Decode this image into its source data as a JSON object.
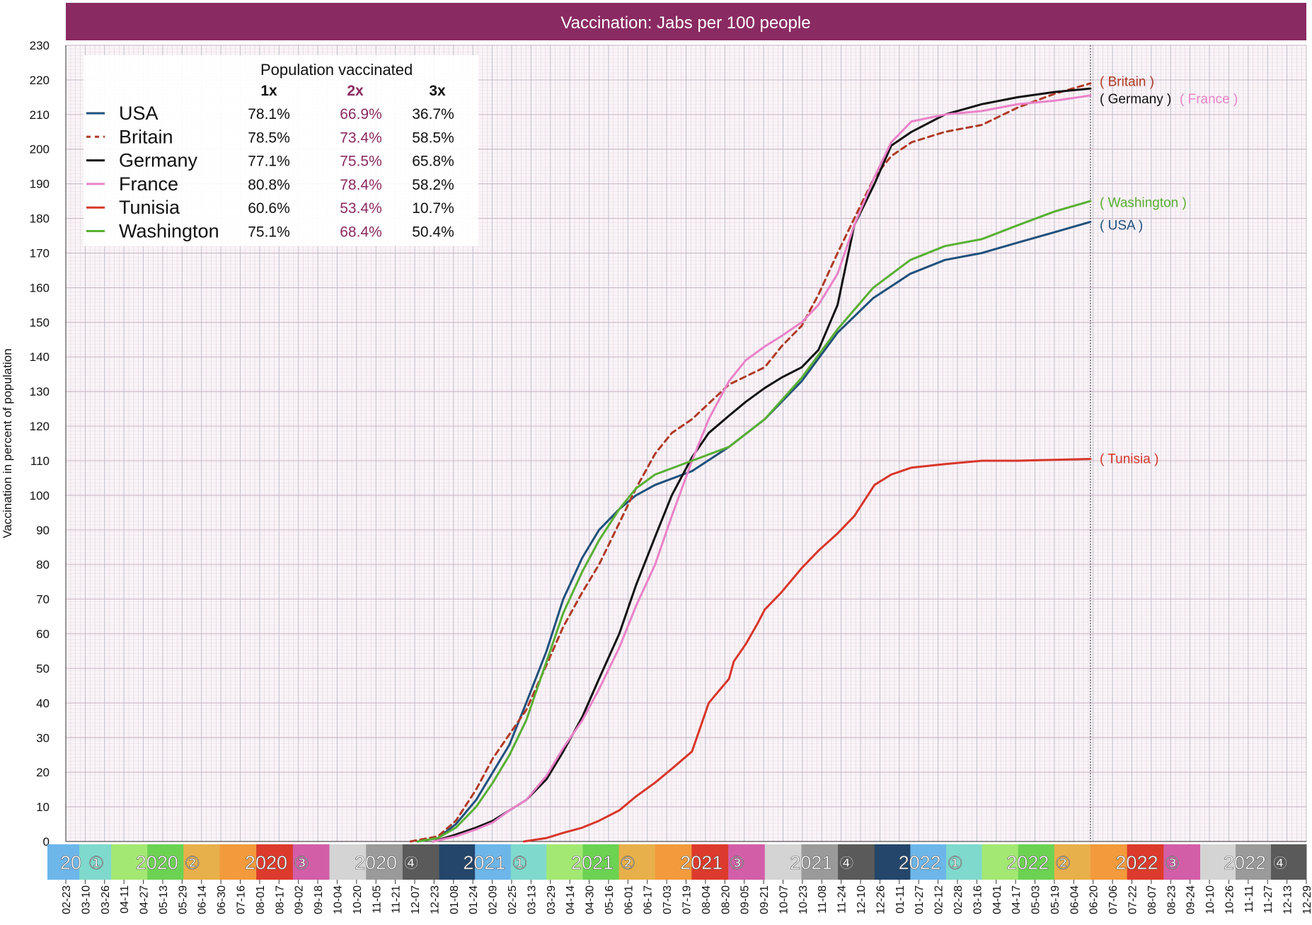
{
  "chart_data": {
    "type": "line",
    "title": "Vaccination: Jabs per 100 people",
    "ylabel": "Vaccination in percent of population",
    "xlabel": "",
    "ylim": [
      0,
      230
    ],
    "yticks": [
      0,
      10,
      20,
      30,
      40,
      50,
      60,
      70,
      80,
      90,
      100,
      110,
      120,
      130,
      140,
      150,
      160,
      170,
      180,
      190,
      200,
      210,
      220,
      230
    ],
    "x_range": [
      "2020-02-23",
      "2022-12-29"
    ],
    "x_tick_labels": [
      "02-23",
      "03-10",
      "03-26",
      "04-11",
      "04-27",
      "05-13",
      "05-29",
      "06-14",
      "06-30",
      "07-16",
      "08-01",
      "08-17",
      "09-02",
      "09-18",
      "10-04",
      "10-20",
      "11-05",
      "11-21",
      "12-07",
      "12-23",
      "01-08",
      "01-24",
      "02-09",
      "02-25",
      "03-13",
      "03-29",
      "04-14",
      "04-30",
      "05-16",
      "06-01",
      "06-17",
      "07-03",
      "07-19",
      "08-04",
      "08-20",
      "09-05",
      "09-21",
      "10-07",
      "10-23",
      "11-08",
      "11-24",
      "12-10",
      "12-26",
      "01-11",
      "01-27",
      "02-12",
      "02-28",
      "03-16",
      "04-01",
      "04-17",
      "05-03",
      "05-19",
      "06-04",
      "06-20",
      "07-06",
      "07-22",
      "08-07",
      "08-23",
      "09-24",
      "10-10",
      "10-26",
      "11-11",
      "11-27",
      "12-13",
      "12-29"
    ],
    "quarters": [
      {
        "label": "20",
        "num": "①",
        "start": "2020-02-23",
        "end": "2020-04-01",
        "colors": [
          "#6cb6ea",
          "#7fd9cc"
        ]
      },
      {
        "label": "2020",
        "num": "②",
        "start": "2020-04-01",
        "end": "2020-07-01",
        "colors": [
          "#a4e874",
          "#6cd252",
          "#e8b04a"
        ]
      },
      {
        "label": "2020",
        "num": "③",
        "start": "2020-07-01",
        "end": "2020-10-01",
        "colors": [
          "#f39a3c",
          "#dc3a2c",
          "#d35ea8"
        ]
      },
      {
        "label": "2020",
        "num": "④",
        "start": "2020-10-01",
        "end": "2021-01-01",
        "colors": [
          "#d4d4d4",
          "#9a9a9a",
          "#5a5a5a"
        ]
      },
      {
        "label": "2021",
        "num": "①",
        "start": "2021-01-01",
        "end": "2021-04-01",
        "colors": [
          "#24466b",
          "#6cb6ea",
          "#7fd9cc"
        ]
      },
      {
        "label": "2021",
        "num": "②",
        "start": "2021-04-01",
        "end": "2021-07-01",
        "colors": [
          "#a4e874",
          "#6cd252",
          "#e8b04a"
        ]
      },
      {
        "label": "2021",
        "num": "③",
        "start": "2021-07-01",
        "end": "2021-10-01",
        "colors": [
          "#f39a3c",
          "#dc3a2c",
          "#d35ea8"
        ]
      },
      {
        "label": "2021",
        "num": "④",
        "start": "2021-10-01",
        "end": "2022-01-01",
        "colors": [
          "#d4d4d4",
          "#9a9a9a",
          "#5a5a5a"
        ]
      },
      {
        "label": "2022",
        "num": "①",
        "start": "2022-01-01",
        "end": "2022-04-01",
        "colors": [
          "#24466b",
          "#6cb6ea",
          "#7fd9cc"
        ]
      },
      {
        "label": "2022",
        "num": "②",
        "start": "2022-04-01",
        "end": "2022-07-01",
        "colors": [
          "#a4e874",
          "#6cd252",
          "#e8b04a"
        ]
      },
      {
        "label": "2022",
        "num": "③",
        "start": "2022-07-01",
        "end": "2022-10-01",
        "colors": [
          "#f39a3c",
          "#dc3a2c",
          "#d35ea8"
        ]
      },
      {
        "label": "2022",
        "num": "④",
        "start": "2022-10-01",
        "end": "2022-12-29",
        "colors": [
          "#d4d4d4",
          "#9a9a9a",
          "#5a5a5a"
        ]
      }
    ],
    "current_date": "2022-07-01",
    "table": {
      "title": "Population vaccinated",
      "headers": [
        "1x",
        "2x",
        "3x"
      ]
    },
    "series": [
      {
        "name": "USA",
        "color": "#20507c",
        "dash": false,
        "end_label": "( USA )",
        "stats": [
          "78.1%",
          "66.9%",
          "36.7%"
        ],
        "points": [
          [
            "2020-12-14",
            0
          ],
          [
            "2020-12-31",
            1
          ],
          [
            "2021-01-15",
            5
          ],
          [
            "2021-02-01",
            12
          ],
          [
            "2021-02-15",
            20
          ],
          [
            "2021-03-01",
            28
          ],
          [
            "2021-03-15",
            40
          ],
          [
            "2021-04-01",
            55
          ],
          [
            "2021-04-15",
            70
          ],
          [
            "2021-05-01",
            82
          ],
          [
            "2021-05-15",
            90
          ],
          [
            "2021-06-01",
            96
          ],
          [
            "2021-06-15",
            100
          ],
          [
            "2021-07-01",
            103
          ],
          [
            "2021-08-01",
            107
          ],
          [
            "2021-09-01",
            114
          ],
          [
            "2021-10-01",
            122
          ],
          [
            "2021-11-01",
            133
          ],
          [
            "2021-12-01",
            147
          ],
          [
            "2021-12-31",
            157
          ],
          [
            "2022-01-31",
            164
          ],
          [
            "2022-03-01",
            168
          ],
          [
            "2022-04-01",
            170
          ],
          [
            "2022-05-01",
            173
          ],
          [
            "2022-06-01",
            176
          ],
          [
            "2022-07-01",
            179
          ]
        ]
      },
      {
        "name": "Britain",
        "color": "#b03a26",
        "dash": true,
        "end_label": "( Britain )",
        "stats": [
          "78.5%",
          "73.4%",
          "58.5%"
        ],
        "points": [
          [
            "2020-12-08",
            0
          ],
          [
            "2020-12-31",
            1.5
          ],
          [
            "2021-01-15",
            6
          ],
          [
            "2021-02-01",
            15
          ],
          [
            "2021-02-15",
            24
          ],
          [
            "2021-03-01",
            31
          ],
          [
            "2021-03-15",
            38
          ],
          [
            "2021-04-01",
            51
          ],
          [
            "2021-04-15",
            62
          ],
          [
            "2021-05-01",
            72
          ],
          [
            "2021-05-15",
            80
          ],
          [
            "2021-06-01",
            92
          ],
          [
            "2021-06-15",
            102
          ],
          [
            "2021-07-01",
            112
          ],
          [
            "2021-07-15",
            118
          ],
          [
            "2021-08-01",
            122
          ],
          [
            "2021-09-01",
            132
          ],
          [
            "2021-10-01",
            137
          ],
          [
            "2021-10-15",
            143
          ],
          [
            "2021-11-01",
            149
          ],
          [
            "2021-11-15",
            158
          ],
          [
            "2021-12-01",
            170
          ],
          [
            "2021-12-15",
            180
          ],
          [
            "2022-01-01",
            192
          ],
          [
            "2022-01-15",
            198
          ],
          [
            "2022-02-01",
            202
          ],
          [
            "2022-03-01",
            205
          ],
          [
            "2022-04-01",
            207
          ],
          [
            "2022-05-01",
            212
          ],
          [
            "2022-06-01",
            216
          ],
          [
            "2022-07-01",
            219
          ]
        ]
      },
      {
        "name": "Germany",
        "color": "#111111",
        "dash": false,
        "end_label": "( Germany )",
        "stats": [
          "77.1%",
          "75.5%",
          "65.8%"
        ],
        "points": [
          [
            "2020-12-27",
            0
          ],
          [
            "2021-01-15",
            2
          ],
          [
            "2021-02-01",
            4
          ],
          [
            "2021-02-15",
            6
          ],
          [
            "2021-03-01",
            9
          ],
          [
            "2021-03-15",
            12
          ],
          [
            "2021-04-01",
            18
          ],
          [
            "2021-04-15",
            26
          ],
          [
            "2021-05-01",
            36
          ],
          [
            "2021-05-15",
            47
          ],
          [
            "2021-06-01",
            60
          ],
          [
            "2021-06-15",
            74
          ],
          [
            "2021-07-01",
            88
          ],
          [
            "2021-07-15",
            100
          ],
          [
            "2021-08-01",
            111
          ],
          [
            "2021-08-15",
            118
          ],
          [
            "2021-09-01",
            123
          ],
          [
            "2021-09-15",
            127
          ],
          [
            "2021-10-01",
            131
          ],
          [
            "2021-10-15",
            134
          ],
          [
            "2021-11-01",
            137
          ],
          [
            "2021-11-15",
            142
          ],
          [
            "2021-12-01",
            155
          ],
          [
            "2021-12-15",
            178
          ],
          [
            "2022-01-01",
            190
          ],
          [
            "2022-01-15",
            201
          ],
          [
            "2022-02-01",
            205
          ],
          [
            "2022-03-01",
            210
          ],
          [
            "2022-04-01",
            213
          ],
          [
            "2022-05-01",
            215
          ],
          [
            "2022-06-01",
            216.5
          ],
          [
            "2022-07-01",
            217.5
          ]
        ]
      },
      {
        "name": "France",
        "color": "#ea82c8",
        "dash": false,
        "end_label": "( France )",
        "stats": [
          "80.8%",
          "78.4%",
          "58.2%"
        ],
        "points": [
          [
            "2020-12-27",
            0
          ],
          [
            "2021-01-15",
            1.5
          ],
          [
            "2021-02-01",
            3.5
          ],
          [
            "2021-02-15",
            5.5
          ],
          [
            "2021-03-01",
            9
          ],
          [
            "2021-03-15",
            12
          ],
          [
            "2021-04-01",
            19
          ],
          [
            "2021-04-15",
            27
          ],
          [
            "2021-05-01",
            35
          ],
          [
            "2021-05-15",
            44
          ],
          [
            "2021-06-01",
            56
          ],
          [
            "2021-06-15",
            68
          ],
          [
            "2021-07-01",
            80
          ],
          [
            "2021-07-15",
            94
          ],
          [
            "2021-08-01",
            110
          ],
          [
            "2021-08-15",
            122
          ],
          [
            "2021-09-01",
            133
          ],
          [
            "2021-09-15",
            139
          ],
          [
            "2021-10-01",
            143
          ],
          [
            "2021-10-15",
            146
          ],
          [
            "2021-11-01",
            150
          ],
          [
            "2021-11-15",
            155
          ],
          [
            "2021-12-01",
            164
          ],
          [
            "2021-12-15",
            178
          ],
          [
            "2022-01-01",
            192
          ],
          [
            "2022-01-15",
            202
          ],
          [
            "2022-02-01",
            208
          ],
          [
            "2022-03-01",
            210
          ],
          [
            "2022-04-01",
            211
          ],
          [
            "2022-05-01",
            213
          ],
          [
            "2022-06-01",
            214
          ],
          [
            "2022-07-01",
            215.5
          ]
        ]
      },
      {
        "name": "Tunisia",
        "color": "#d8362a",
        "dash": false,
        "end_label": "( Tunisia )",
        "stats": [
          "60.6%",
          "53.4%",
          "10.7%"
        ],
        "points": [
          [
            "2021-03-13",
            0
          ],
          [
            "2021-04-01",
            1
          ],
          [
            "2021-04-15",
            2.5
          ],
          [
            "2021-05-01",
            4
          ],
          [
            "2021-05-15",
            6
          ],
          [
            "2021-06-01",
            9
          ],
          [
            "2021-06-15",
            13
          ],
          [
            "2021-07-01",
            17
          ],
          [
            "2021-07-15",
            21
          ],
          [
            "2021-08-01",
            26
          ],
          [
            "2021-08-08",
            33
          ],
          [
            "2021-08-15",
            40
          ],
          [
            "2021-09-01",
            47
          ],
          [
            "2021-09-05",
            52
          ],
          [
            "2021-09-15",
            57
          ],
          [
            "2021-09-25",
            63
          ],
          [
            "2021-10-01",
            67
          ],
          [
            "2021-10-15",
            72
          ],
          [
            "2021-11-01",
            79
          ],
          [
            "2021-11-15",
            84
          ],
          [
            "2021-12-01",
            89
          ],
          [
            "2021-12-15",
            94
          ],
          [
            "2022-01-01",
            103
          ],
          [
            "2022-01-15",
            106
          ],
          [
            "2022-02-01",
            108
          ],
          [
            "2022-03-01",
            109
          ],
          [
            "2022-04-01",
            110
          ],
          [
            "2022-05-01",
            110
          ],
          [
            "2022-07-01",
            110.5
          ]
        ]
      },
      {
        "name": "Washington",
        "color": "#58b033",
        "dash": false,
        "end_label": "( Washington )",
        "stats": [
          "75.1%",
          "68.4%",
          "50.4%"
        ],
        "points": [
          [
            "2020-12-14",
            0
          ],
          [
            "2020-12-31",
            1
          ],
          [
            "2021-01-15",
            4
          ],
          [
            "2021-02-01",
            10
          ],
          [
            "2021-02-15",
            17
          ],
          [
            "2021-03-01",
            25
          ],
          [
            "2021-03-15",
            35
          ],
          [
            "2021-04-01",
            52
          ],
          [
            "2021-04-15",
            66
          ],
          [
            "2021-05-01",
            78
          ],
          [
            "2021-05-15",
            87
          ],
          [
            "2021-06-01",
            96
          ],
          [
            "2021-06-15",
            102
          ],
          [
            "2021-07-01",
            106
          ],
          [
            "2021-08-01",
            110
          ],
          [
            "2021-09-01",
            114
          ],
          [
            "2021-10-01",
            122
          ],
          [
            "2021-11-01",
            134
          ],
          [
            "2021-12-01",
            148
          ],
          [
            "2021-12-31",
            160
          ],
          [
            "2022-01-31",
            168
          ],
          [
            "2022-03-01",
            172
          ],
          [
            "2022-04-01",
            174
          ],
          [
            "2022-05-01",
            178
          ],
          [
            "2022-06-01",
            182
          ],
          [
            "2022-07-01",
            185
          ]
        ]
      }
    ]
  }
}
